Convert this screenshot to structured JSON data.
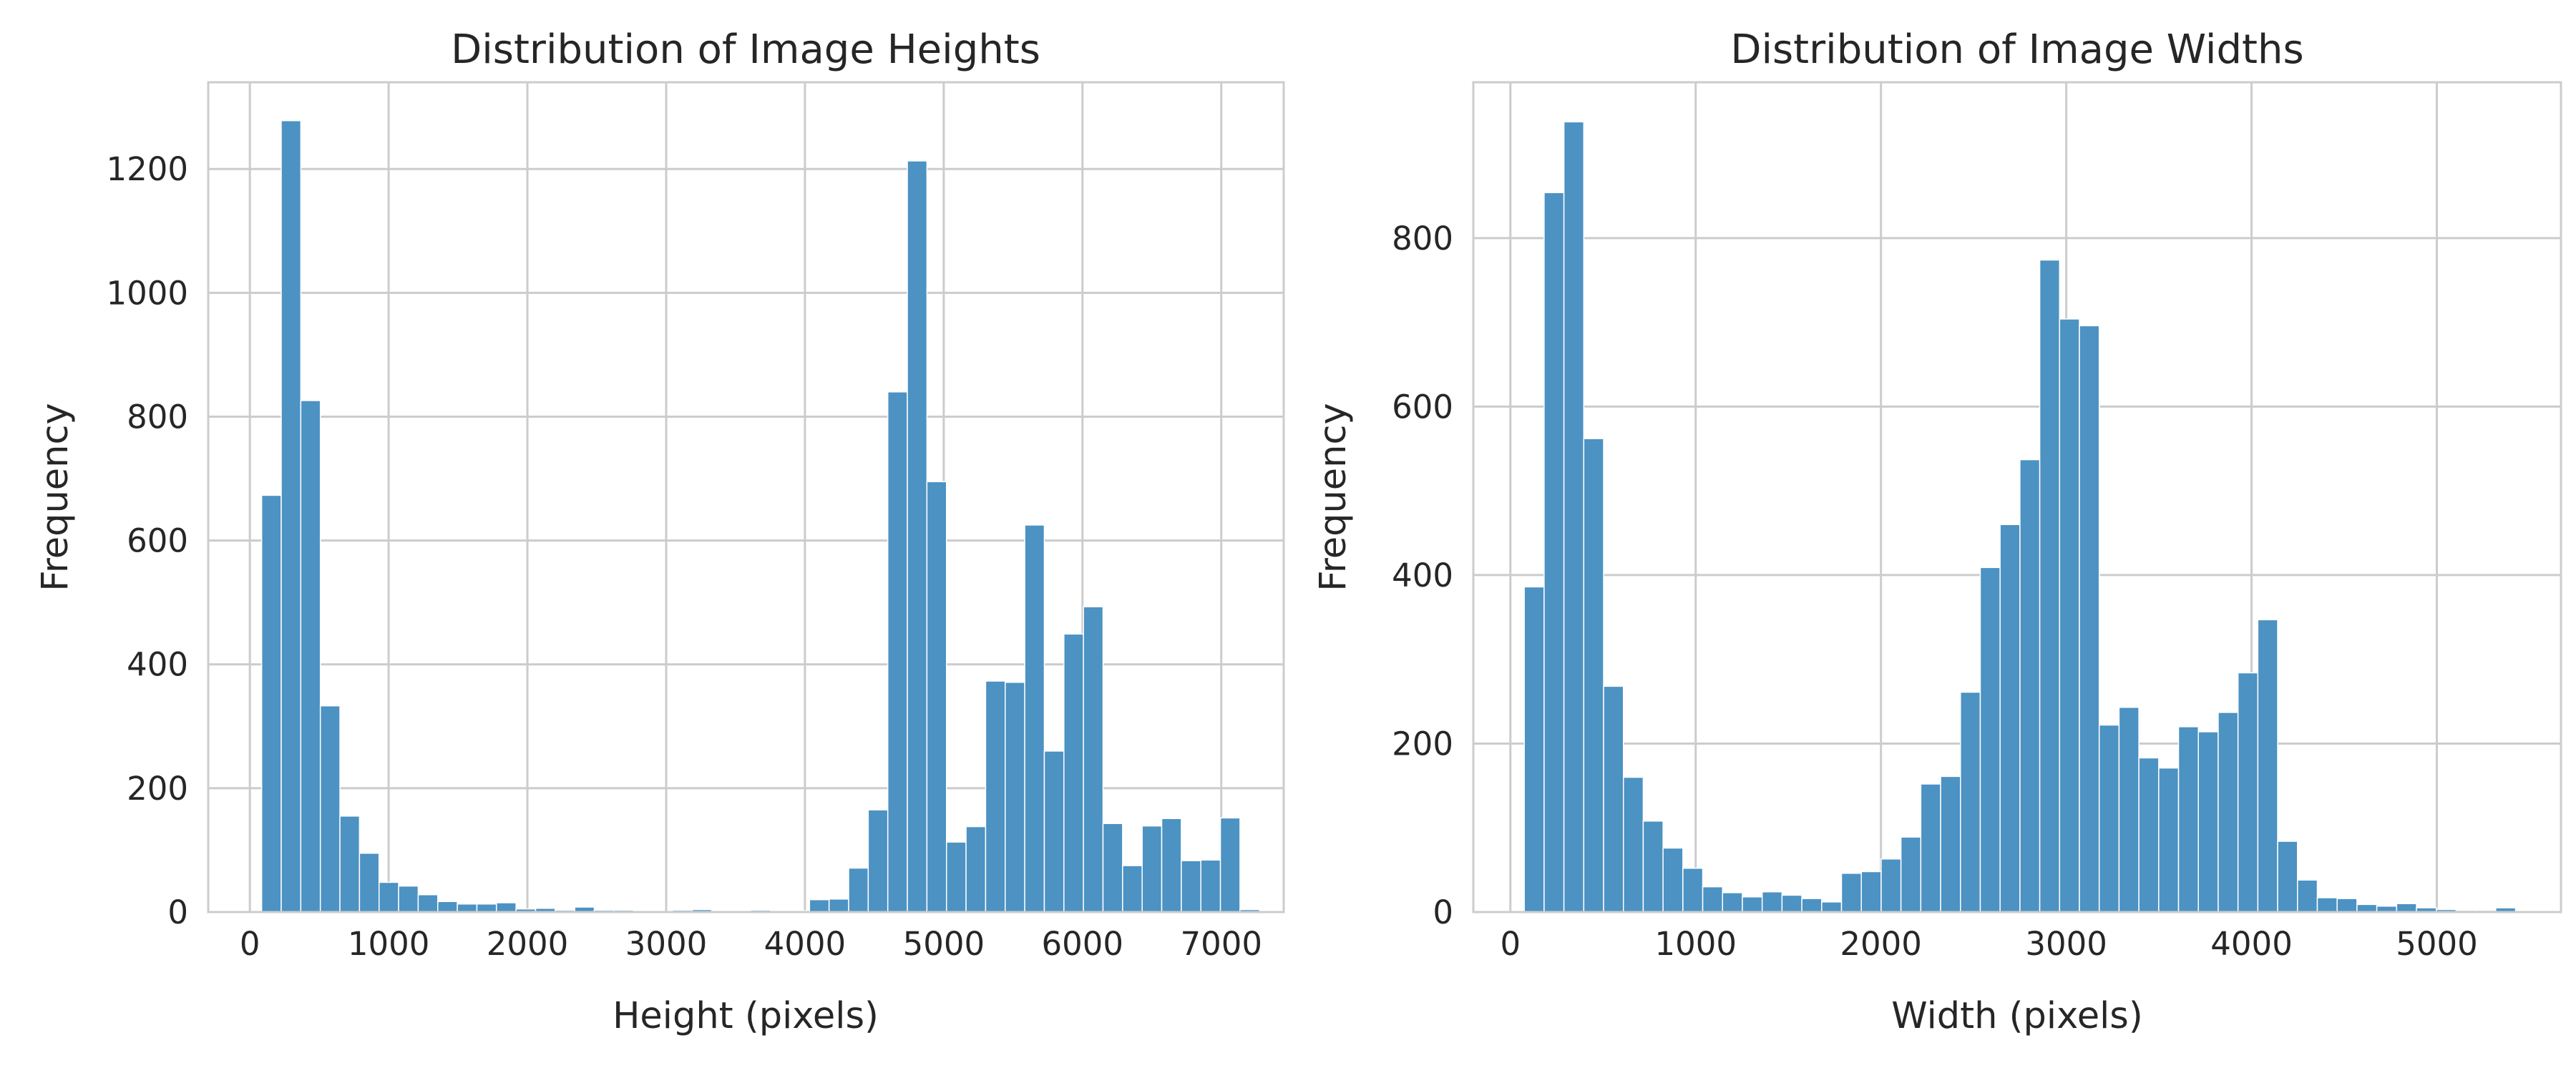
{
  "colors": {
    "bar": "#4c92c3"
  },
  "chart_data": [
    {
      "type": "histogram",
      "title": "Distribution of Image Heights",
      "xlabel": "Height (pixels)",
      "ylabel": "Frequency",
      "xlim": [
        -300,
        7450
      ],
      "ylim": [
        0,
        1340
      ],
      "xticks": [
        0,
        1000,
        2000,
        3000,
        4000,
        5000,
        6000,
        7000
      ],
      "yticks": [
        0,
        200,
        400,
        600,
        800,
        1000,
        1200
      ],
      "grid": true,
      "bin_start": 85,
      "bin_width": 141,
      "values": [
        673,
        1278,
        826,
        333,
        155,
        95,
        48,
        42,
        28,
        17,
        13,
        13,
        15,
        5,
        6,
        3,
        8,
        3,
        3,
        2,
        0,
        3,
        4,
        2,
        2,
        3,
        1,
        2,
        20,
        21,
        71,
        165,
        840,
        1213,
        695,
        113,
        138,
        373,
        371,
        625,
        260,
        449,
        493,
        143,
        75,
        139,
        151,
        83,
        84,
        152,
        4
      ]
    },
    {
      "type": "histogram",
      "title": "Distribution of Image Widths",
      "xlabel": "Width (pixels)",
      "ylabel": "Frequency",
      "xlim": [
        -200,
        5670
      ],
      "ylim": [
        0,
        985
      ],
      "xticks": [
        0,
        1000,
        2000,
        3000,
        4000,
        5000
      ],
      "yticks": [
        0,
        200,
        400,
        600,
        800
      ],
      "grid": true,
      "bin_start": 75,
      "bin_width": 107,
      "values": [
        386,
        854,
        938,
        562,
        268,
        160,
        108,
        76,
        52,
        30,
        23,
        18,
        24,
        20,
        16,
        12,
        46,
        48,
        63,
        89,
        152,
        161,
        261,
        409,
        460,
        537,
        774,
        704,
        696,
        222,
        243,
        183,
        171,
        220,
        214,
        237,
        284,
        347,
        84,
        38,
        17,
        16,
        9,
        7,
        10,
        5,
        3,
        2,
        2,
        5
      ]
    }
  ]
}
